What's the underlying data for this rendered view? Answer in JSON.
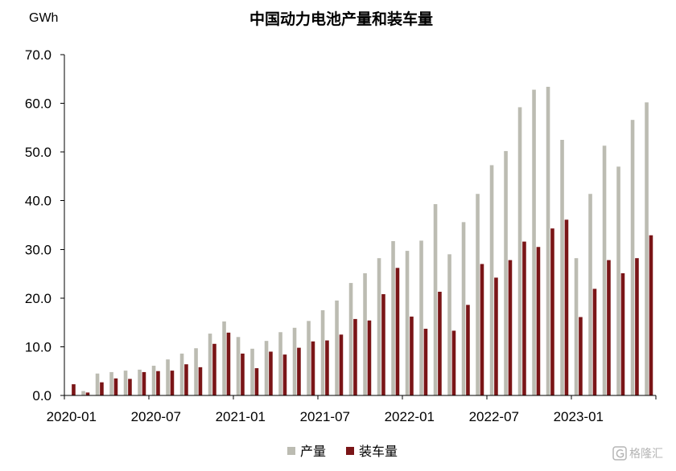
{
  "chart_data": {
    "type": "bar",
    "title": "中国动力电池产量和装车量",
    "ylabel": "GWh",
    "xlabel": "",
    "ylim": [
      0,
      70
    ],
    "yticks": [
      "0.0",
      "10.0",
      "20.0",
      "30.0",
      "40.0",
      "50.0",
      "60.0",
      "70.0"
    ],
    "grid": false,
    "legend": "bottom-center",
    "categories": [
      "2020-01",
      "2020-02",
      "2020-03",
      "2020-04",
      "2020-05",
      "2020-06",
      "2020-07",
      "2020-08",
      "2020-09",
      "2020-10",
      "2020-11",
      "2020-12",
      "2021-01",
      "2021-02",
      "2021-03",
      "2021-04",
      "2021-05",
      "2021-06",
      "2021-07",
      "2021-08",
      "2021-09",
      "2021-10",
      "2021-11",
      "2021-12",
      "2022-01",
      "2022-02",
      "2022-03",
      "2022-04",
      "2022-05",
      "2022-06",
      "2022-07",
      "2022-08",
      "2022-09",
      "2022-10",
      "2022-11",
      "2022-12",
      "2023-01",
      "2023-02",
      "2023-03",
      "2023-04",
      "2023-05",
      "2023-06"
    ],
    "series": [
      {
        "name": "产量",
        "color": "#bcbcb2",
        "values": [
          null,
          0.9,
          4.5,
          4.8,
          5.1,
          5.3,
          6.1,
          7.4,
          8.6,
          9.7,
          12.7,
          15.2,
          12.0,
          9.6,
          11.2,
          13.0,
          13.9,
          15.3,
          17.5,
          19.5,
          23.1,
          25.1,
          28.2,
          31.7,
          29.7,
          31.8,
          39.3,
          29.0,
          35.6,
          41.4,
          47.3,
          50.2,
          59.2,
          62.8,
          63.4,
          52.5,
          28.2,
          41.4,
          51.3,
          47.0,
          56.6,
          60.2
        ]
      },
      {
        "name": "装车量",
        "color": "#7a1517",
        "values": [
          2.3,
          0.6,
          2.7,
          3.5,
          3.4,
          4.8,
          5.0,
          5.1,
          6.4,
          5.8,
          10.6,
          12.9,
          8.6,
          5.6,
          9.0,
          8.4,
          9.8,
          11.1,
          11.3,
          12.5,
          15.7,
          15.4,
          20.8,
          26.2,
          16.2,
          13.7,
          21.3,
          13.3,
          18.6,
          27.0,
          24.2,
          27.8,
          31.6,
          30.5,
          34.3,
          36.1,
          16.1,
          21.9,
          27.8,
          25.1,
          28.2,
          32.9
        ]
      }
    ]
  },
  "watermark": {
    "text": "格隆汇",
    "icon": "gelonghui-logo-icon",
    "color": "#a9a9a9"
  }
}
